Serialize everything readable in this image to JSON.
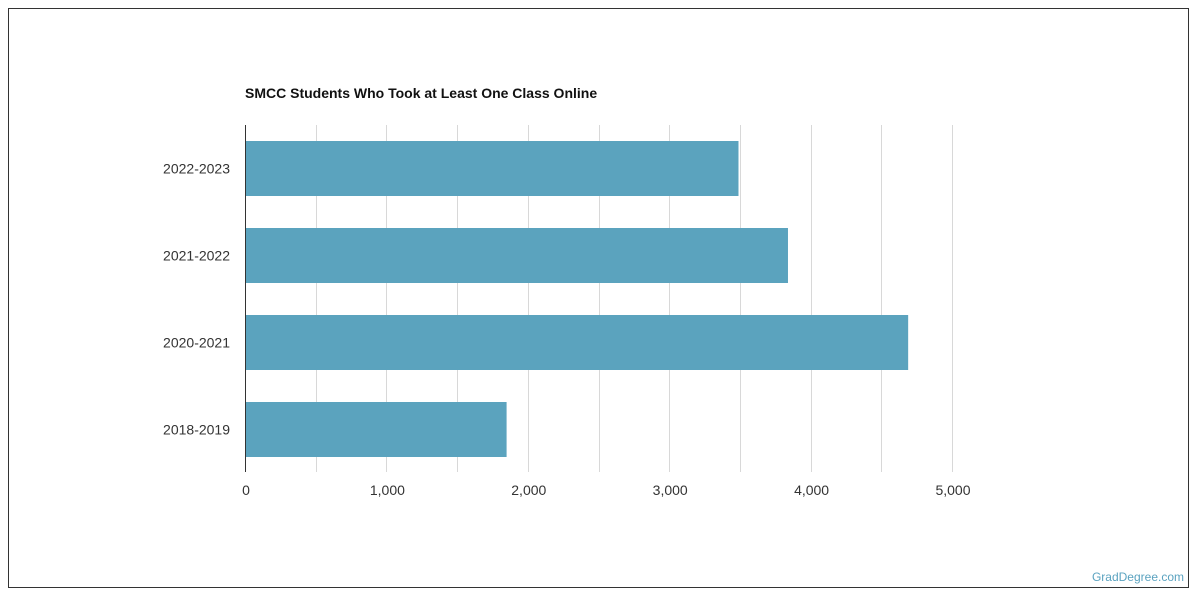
{
  "title": "SMCC Students Who Took at Least One Class Online",
  "credit": "GradDegree.com",
  "colors": {
    "bar": "#5ba3be",
    "grid": "#d8d8d8",
    "axis": "#333333",
    "text": "#333333",
    "credit": "#5ba3c0"
  },
  "chart_data": {
    "type": "bar",
    "orientation": "horizontal",
    "title": "SMCC Students Who Took at Least One Class Online",
    "categories": [
      "2022-2023",
      "2021-2022",
      "2020-2021",
      "2018-2019"
    ],
    "values": [
      3490,
      3840,
      4690,
      1850
    ],
    "xlim": [
      0,
      5000
    ],
    "xticks": [
      0,
      1000,
      2000,
      3000,
      4000,
      5000
    ],
    "xtick_labels": [
      "0",
      "1,000",
      "2,000",
      "3,000",
      "4,000",
      "5,000"
    ],
    "grid": true,
    "legend": "none"
  }
}
